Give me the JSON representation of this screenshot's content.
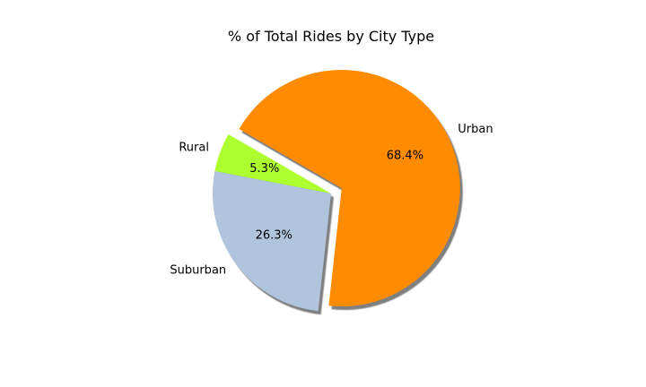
{
  "chart_data": {
    "type": "pie",
    "title": "% of Total Rides by City Type",
    "labels": [
      "Rural",
      "Suburban",
      "Urban"
    ],
    "values": [
      5.3,
      26.3,
      68.4
    ],
    "value_labels": [
      "5.3%",
      "26.3%",
      "68.4%"
    ],
    "colors": [
      "#adff2f",
      "#b0c4de",
      "#ff8c00"
    ],
    "explode": [
      0,
      0,
      0.1
    ],
    "shadow": true,
    "start_angle": 150
  }
}
